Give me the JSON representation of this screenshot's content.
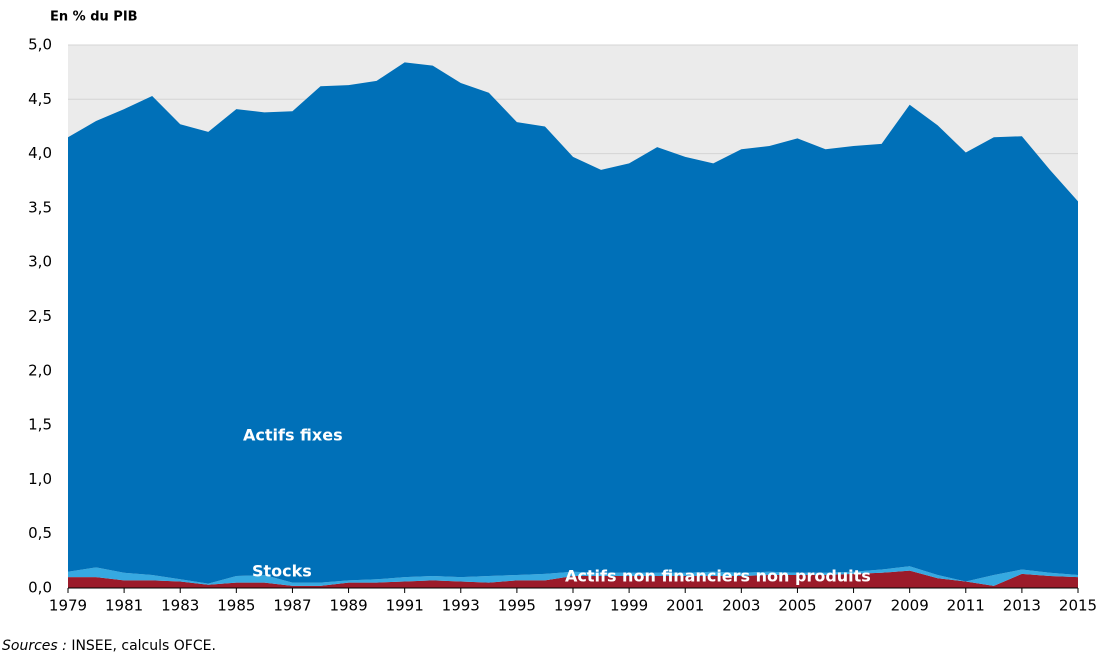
{
  "chart_data": {
    "type": "stacked_area",
    "y_label": "En % du PIB",
    "x": [
      1979,
      1980,
      1981,
      1982,
      1983,
      1984,
      1985,
      1986,
      1987,
      1988,
      1989,
      1990,
      1991,
      1992,
      1993,
      1994,
      1995,
      1996,
      1997,
      1998,
      1999,
      2000,
      2001,
      2002,
      2003,
      2004,
      2005,
      2006,
      2007,
      2008,
      2009,
      2010,
      2011,
      2012,
      2013,
      2014,
      2015
    ],
    "series": [
      {
        "name": "Actifs non financiers non produits",
        "color": "#9b1b2a",
        "values": [
          0.1,
          0.1,
          0.07,
          0.07,
          0.06,
          0.03,
          0.05,
          0.05,
          0.02,
          0.02,
          0.05,
          0.05,
          0.06,
          0.07,
          0.06,
          0.05,
          0.07,
          0.07,
          0.11,
          0.11,
          0.11,
          0.11,
          0.11,
          0.11,
          0.11,
          0.12,
          0.12,
          0.12,
          0.13,
          0.14,
          0.16,
          0.09,
          0.06,
          0.02,
          0.13,
          0.11,
          0.1
        ]
      },
      {
        "name": "Stocks",
        "color": "#36a9e1",
        "values": [
          0.05,
          0.09,
          0.07,
          0.05,
          0.02,
          0.01,
          0.06,
          0.07,
          0.03,
          0.03,
          0.02,
          0.03,
          0.04,
          0.04,
          0.04,
          0.06,
          0.05,
          0.06,
          0.04,
          0.03,
          0.03,
          0.03,
          0.03,
          0.04,
          0.03,
          0.03,
          0.02,
          0.02,
          0.02,
          0.03,
          0.04,
          0.03,
          0.0,
          0.1,
          0.04,
          0.03,
          0.02
        ]
      },
      {
        "name": "Actifs fixes",
        "color": "#0070b8",
        "values": [
          4.0,
          4.11,
          4.27,
          4.41,
          4.19,
          4.16,
          4.3,
          4.26,
          4.34,
          4.57,
          4.56,
          4.59,
          4.74,
          4.7,
          4.55,
          4.45,
          4.17,
          4.12,
          3.82,
          3.71,
          3.77,
          3.92,
          3.83,
          3.76,
          3.9,
          3.92,
          4.0,
          3.9,
          3.92,
          3.92,
          4.25,
          4.14,
          3.95,
          4.03,
          3.99,
          3.71,
          3.44
        ]
      }
    ],
    "xlim": [
      1979,
      2015
    ],
    "xticks": [
      1979,
      1981,
      1983,
      1985,
      1987,
      1989,
      1991,
      1993,
      1995,
      1997,
      1999,
      2001,
      2003,
      2005,
      2007,
      2009,
      2011,
      2013,
      2015
    ],
    "ylim": [
      0,
      5
    ],
    "yticks": [
      {
        "value": 0,
        "label": "0,0"
      },
      {
        "value": 0.5,
        "label": "0,5"
      },
      {
        "value": 1,
        "label": "1,0"
      },
      {
        "value": 1.5,
        "label": "1,5"
      },
      {
        "value": 2,
        "label": "2,0"
      },
      {
        "value": 2.5,
        "label": "2,5"
      },
      {
        "value": 3,
        "label": "3,0"
      },
      {
        "value": 3.5,
        "label": "3,5"
      },
      {
        "value": 4,
        "label": "4,0"
      },
      {
        "value": 4.5,
        "label": "4,5"
      },
      {
        "value": 5,
        "label": "5,0"
      }
    ],
    "grid": true,
    "source": {
      "label": "Sources :",
      "text": "INSEE, calculs OFCE."
    }
  }
}
